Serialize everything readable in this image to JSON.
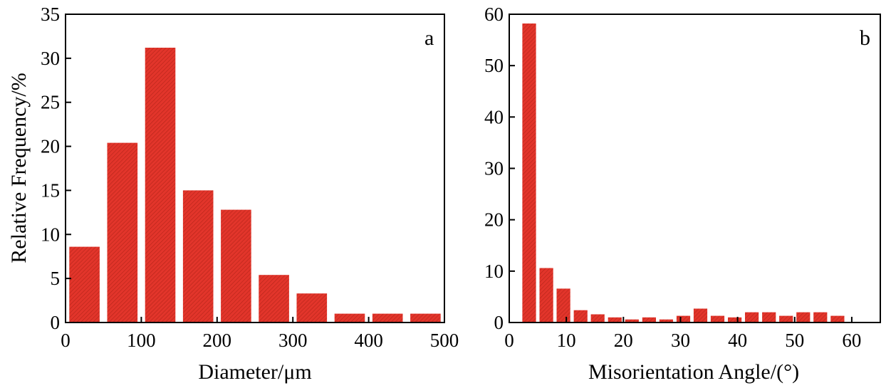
{
  "colors": {
    "bar_fill": "#e2352b",
    "bar_hatch": "#b52418",
    "axis": "#000000"
  },
  "chart_data": [
    {
      "type": "bar",
      "panel_label": "a",
      "xlabel": "Diameter/μm",
      "ylabel": "Relative Frequency/%",
      "xlim": [
        0,
        500
      ],
      "ylim": [
        0,
        35
      ],
      "xticks": [
        0,
        100,
        200,
        300,
        400,
        500
      ],
      "yticks": [
        0,
        5,
        10,
        15,
        20,
        25,
        30,
        35
      ],
      "bin_width": 50,
      "bar_width": 40,
      "x": [
        25,
        75,
        125,
        175,
        225,
        275,
        325,
        375,
        425,
        475
      ],
      "values": [
        8.6,
        20.4,
        31.2,
        15.0,
        12.8,
        5.4,
        3.3,
        1.0,
        1.0,
        1.0
      ]
    },
    {
      "type": "bar",
      "panel_label": "b",
      "xlabel": "Misorientation Angle/(°)",
      "ylabel": "",
      "xlim": [
        0,
        65
      ],
      "ylim": [
        0,
        60
      ],
      "xticks": [
        0,
        10,
        20,
        30,
        40,
        50,
        60
      ],
      "yticks": [
        0,
        10,
        20,
        30,
        40,
        50,
        60
      ],
      "bin_width": 3,
      "bar_width": 2.4,
      "x": [
        3.5,
        6.5,
        9.5,
        12.5,
        15.5,
        18.5,
        21.5,
        24.5,
        27.5,
        30.5,
        33.5,
        36.5,
        39.5,
        42.5,
        45.5,
        48.5,
        51.5,
        54.5,
        57.5,
        60.5
      ],
      "values": [
        58.2,
        10.6,
        6.6,
        2.4,
        1.6,
        1.0,
        0.6,
        1.0,
        0.6,
        1.3,
        2.7,
        1.3,
        1.0,
        2.0,
        2.0,
        1.3,
        2.0,
        2.0,
        1.3,
        0.0
      ]
    }
  ]
}
